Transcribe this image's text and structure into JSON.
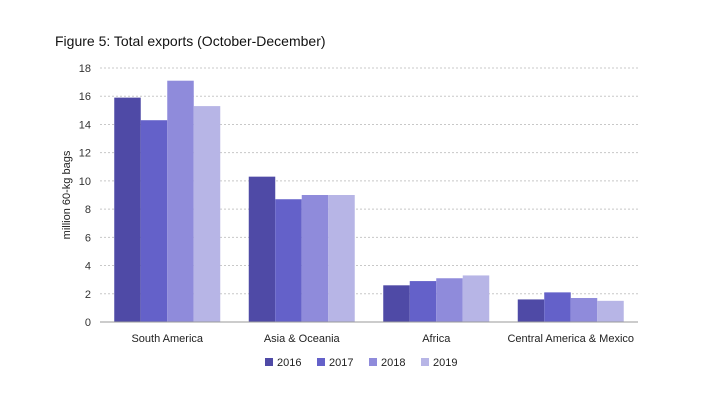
{
  "figure_title": "Figure 5: Total exports (October-December)",
  "chart_data": {
    "type": "bar",
    "title": "Figure 5: Total exports (October-December)",
    "xlabel": "",
    "ylabel": "million 60-kg bags",
    "ylim": [
      0,
      18
    ],
    "yticks": [
      0,
      2,
      4,
      6,
      8,
      10,
      12,
      14,
      16,
      18
    ],
    "grid": "horizontal dotted",
    "legend_position": "bottom",
    "categories": [
      "South America",
      "Asia & Oceania",
      "Africa",
      "Central America & Mexico"
    ],
    "series": [
      {
        "name": "2016",
        "color": "#4f4aa6",
        "values": [
          15.9,
          10.3,
          2.6,
          1.6
        ]
      },
      {
        "name": "2017",
        "color": "#6461c9",
        "values": [
          14.3,
          8.7,
          2.9,
          2.1
        ]
      },
      {
        "name": "2018",
        "color": "#8f8bdb",
        "values": [
          17.1,
          9.0,
          3.1,
          1.7
        ]
      },
      {
        "name": "2019",
        "color": "#b7b5e6",
        "values": [
          15.3,
          9.0,
          3.3,
          1.5
        ]
      }
    ]
  }
}
